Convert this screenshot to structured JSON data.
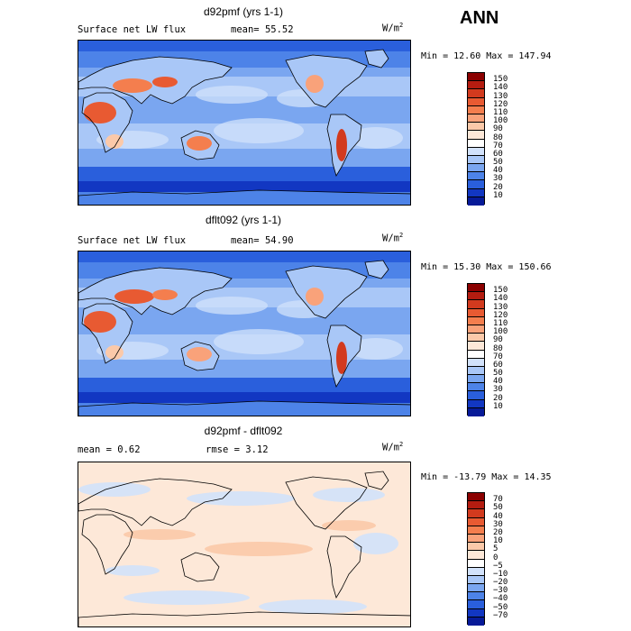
{
  "season": "ANN",
  "units": "W/m",
  "units_exp": "2",
  "panels": [
    {
      "title": "d92pmf (yrs 1-1)",
      "left_label": "Surface net LW flux",
      "stat_label": "mean=",
      "stat_value": "55.52",
      "stat2_label": "",
      "stat2_value": "",
      "min_label": "Min =",
      "min_value": "12.60",
      "max_label": "Max =",
      "max_value": "147.94",
      "levels": [
        "150",
        "140",
        "130",
        "120",
        "110",
        "100",
        "90",
        "80",
        "70",
        "60",
        "50",
        "40",
        "30",
        "20",
        "10"
      ],
      "colors": [
        "#8b0000",
        "#b41c10",
        "#d23a1e",
        "#e85a32",
        "#f47e4e",
        "#f9a27a",
        "#fbc9a9",
        "#fde8d8",
        "#ffffff",
        "#d2e2fb",
        "#a9c7f7",
        "#7aa6f0",
        "#4d83e8",
        "#2a5fdc",
        "#1237c2",
        "#071a98"
      ]
    },
    {
      "title": "dflt092 (yrs 1-1)",
      "left_label": "Surface net LW flux",
      "stat_label": "mean=",
      "stat_value": "54.90",
      "stat2_label": "",
      "stat2_value": "",
      "min_label": "Min =",
      "min_value": "15.30",
      "max_label": "Max =",
      "max_value": "150.66",
      "levels": [
        "150",
        "140",
        "130",
        "120",
        "110",
        "100",
        "90",
        "80",
        "70",
        "60",
        "50",
        "40",
        "30",
        "20",
        "10"
      ],
      "colors": [
        "#8b0000",
        "#b41c10",
        "#d23a1e",
        "#e85a32",
        "#f47e4e",
        "#f9a27a",
        "#fbc9a9",
        "#fde8d8",
        "#ffffff",
        "#d2e2fb",
        "#a9c7f7",
        "#7aa6f0",
        "#4d83e8",
        "#2a5fdc",
        "#1237c2",
        "#071a98"
      ]
    },
    {
      "title": "d92pmf - dflt092",
      "left_label": "",
      "stat_label": "mean =",
      "stat_value": "0.62",
      "stat2_label": "rmse =",
      "stat2_value": "3.12",
      "min_label": "Min =",
      "min_value": "-13.79",
      "max_label": "Max =",
      "max_value": "14.35",
      "levels": [
        "70",
        "50",
        "40",
        "30",
        "20",
        "10",
        "5",
        "0",
        "−5",
        "−10",
        "−20",
        "−30",
        "−40",
        "−50",
        "−70"
      ],
      "colors": [
        "#8b0000",
        "#b41c10",
        "#d23a1e",
        "#e85a32",
        "#f47e4e",
        "#f9a27a",
        "#fbc9a9",
        "#fde8d8",
        "#ffffff",
        "#d2e2fb",
        "#a9c7f7",
        "#7aa6f0",
        "#4d83e8",
        "#2a5fdc",
        "#1237c2",
        "#071a98"
      ]
    }
  ]
}
